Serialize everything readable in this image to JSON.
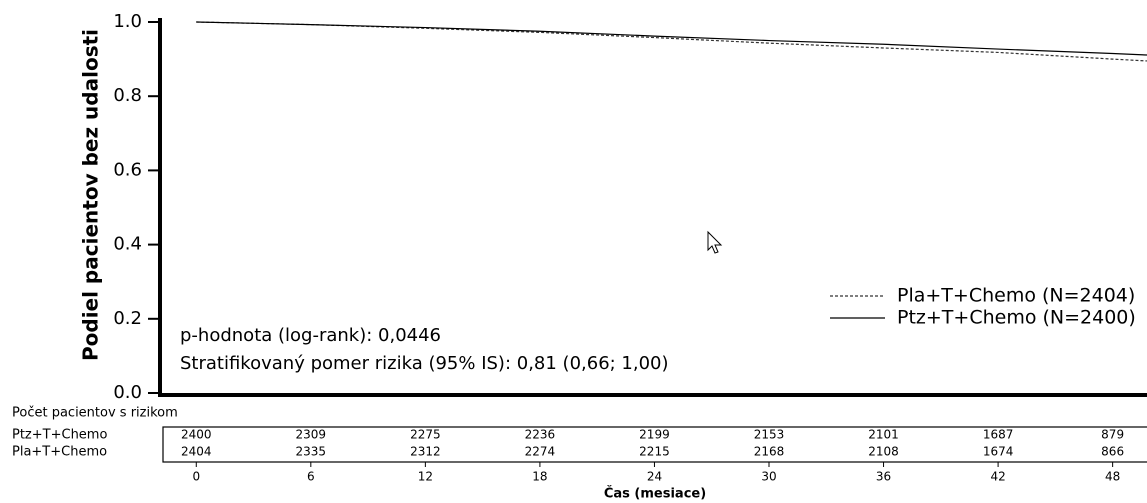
{
  "chart_data": {
    "type": "line",
    "ylabel": "Podiel pacientov bez udalosti",
    "xlabel": "Čas (mesiace)",
    "x": [
      0,
      6,
      12,
      18,
      24,
      30,
      36,
      42,
      48,
      49.8
    ],
    "series": [
      {
        "name": "Pla+T+Chemo (N=2404)",
        "color": "#333333",
        "dashed": true,
        "values": [
          1.0,
          0.993,
          0.983,
          0.972,
          0.958,
          0.943,
          0.93,
          0.918,
          0.9,
          0.895
        ]
      },
      {
        "name": "Ptz+T+Chemo (N=2400)",
        "color": "#000000",
        "dashed": false,
        "values": [
          1.0,
          0.993,
          0.985,
          0.975,
          0.962,
          0.95,
          0.94,
          0.927,
          0.915,
          0.911
        ]
      }
    ],
    "xlim": [
      -1.9,
      49.8
    ],
    "ylim": [
      0,
      1.0
    ],
    "xticks": [
      0,
      6,
      12,
      18,
      24,
      30,
      36,
      42,
      48
    ],
    "yticks": [
      {
        "value": 0,
        "label": "0.0"
      },
      {
        "value": 0.2,
        "label": "0.2"
      },
      {
        "value": 0.4,
        "label": "0.4"
      },
      {
        "value": 0.6,
        "label": "0.6"
      },
      {
        "value": 0.8,
        "label": "0.8"
      },
      {
        "value": 1.0,
        "label": "1.0"
      }
    ],
    "legend": "right",
    "annotations": [
      "p-hodnota (log-rank): 0,0446",
      "Stratifikovaný pomer rizika (95% IS): 0,81 (0,66; 1,00)"
    ],
    "risk_table": {
      "title": "Počet pacientov s rizikom",
      "rows": [
        {
          "name": "Ptz+T+Chemo",
          "counts": [
            2400,
            2309,
            2275,
            2236,
            2199,
            2153,
            2101,
            1687,
            879
          ]
        },
        {
          "name": "Pla+T+Chemo",
          "counts": [
            2404,
            2335,
            2312,
            2274,
            2215,
            2168,
            2108,
            1674,
            866
          ]
        }
      ]
    }
  }
}
